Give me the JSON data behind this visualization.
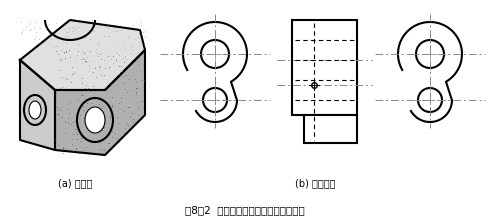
{
  "title": "图8－2  基本视图的选用及其虚线的省略",
  "label_a": "(a) 直观图",
  "label_b": "(b) 基本视图",
  "bg_color": "#ffffff",
  "line_color": "#000000",
  "dash_color": "#000000",
  "centerline_color": "#888888",
  "figsize": [
    4.91,
    2.21
  ],
  "dpi": 100
}
